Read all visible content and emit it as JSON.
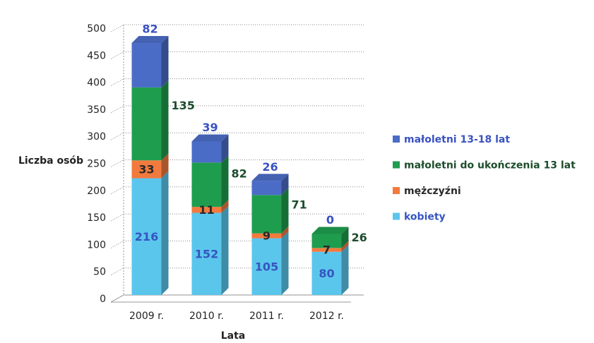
{
  "chart_data": {
    "type": "stacked_bar",
    "y_label": "Liczba osób",
    "x_label": "Lata",
    "categories": [
      "2009 r.",
      "2010 r.",
      "2011 r.",
      "2012 r."
    ],
    "series": [
      {
        "name": "kobiety",
        "color": "#5bc6ec",
        "label_color": "#3555c0",
        "values": [
          216,
          152,
          105,
          80
        ]
      },
      {
        "name": "mężczyźni",
        "color": "#f27a3e",
        "label_color": "#2a2a2a",
        "values": [
          33,
          11,
          9,
          7
        ]
      },
      {
        "name": "małoletni do ukończenia 13 lat",
        "color": "#1f9d4f",
        "label_color": "#1d4d2c",
        "values": [
          135,
          82,
          71,
          26
        ]
      },
      {
        "name": "małoletni 13-18 lat",
        "color": "#4b6cc6",
        "label_color": "#3a52c0",
        "values": [
          82,
          39,
          26,
          0
        ]
      }
    ],
    "ylim": [
      0,
      500
    ],
    "yticks": [
      0,
      50,
      100,
      150,
      200,
      250,
      300,
      350,
      400,
      450,
      500
    ],
    "grid": true
  }
}
